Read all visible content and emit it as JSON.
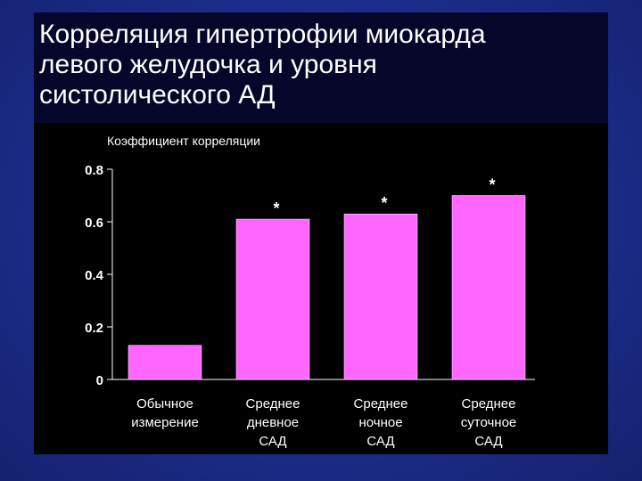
{
  "slide": {
    "title_lines": [
      "Корреляция гипертрофии миокарда",
      "левого желудочка и уровня",
      "систолического  АД"
    ]
  },
  "colors": {
    "background": "#1e2f93",
    "panel": "#06062a",
    "chart_bg": "#000000",
    "bar": "#ff66ff",
    "text": "#ffffff"
  },
  "chart_data": {
    "type": "bar",
    "ylabel": "Коэффициент корреляции",
    "ylim": [
      0,
      0.8
    ],
    "yticks": [
      {
        "value": 0,
        "label": "0"
      },
      {
        "value": 0.2,
        "label": "0.2"
      },
      {
        "value": 0.4,
        "label": "0.4"
      },
      {
        "value": 0.6,
        "label": "0.6"
      },
      {
        "value": 0.8,
        "label": "0.8"
      }
    ],
    "categories": [
      [
        "Обычное",
        "измерение"
      ],
      [
        "Среднее",
        "дневное",
        "САД"
      ],
      [
        "Среднее",
        "ночное",
        "САД"
      ],
      [
        "Среднее",
        "суточное",
        "САД"
      ]
    ],
    "values": [
      0.13,
      0.61,
      0.63,
      0.7
    ],
    "annotations": [
      "",
      "*",
      "*",
      "*"
    ],
    "grid": false,
    "legend": "none"
  }
}
